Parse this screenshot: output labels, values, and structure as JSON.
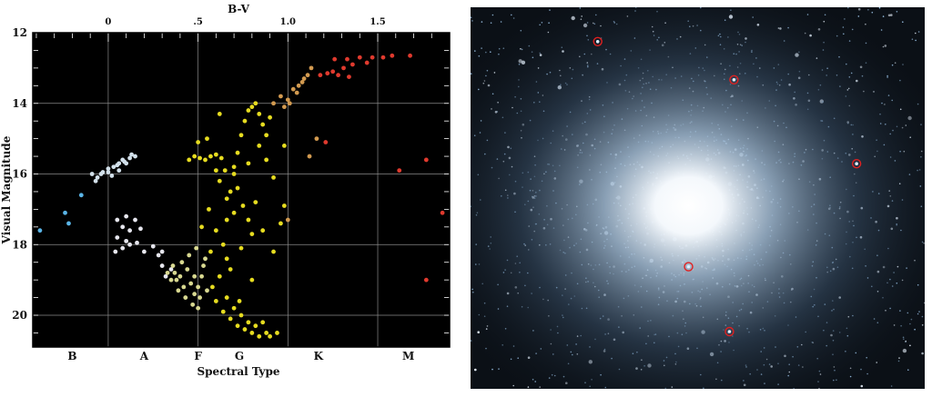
{
  "chart_data": {
    "type": "scatter",
    "title": "",
    "xlabel": "Spectral Type",
    "ylabel": "Visual Magnitude",
    "top_xlabel": "B-V",
    "xlim": [
      -0.42,
      1.9
    ],
    "ylim": [
      20.9,
      12.0
    ],
    "top_ticks": [
      {
        "value": 0.0,
        "label": "0"
      },
      {
        "value": 0.5,
        "label": ".5"
      },
      {
        "value": 1.0,
        "label": "1.0"
      },
      {
        "value": 1.5,
        "label": "1.5"
      }
    ],
    "y_ticks": [
      {
        "value": 12,
        "label": "12"
      },
      {
        "value": 14,
        "label": "14"
      },
      {
        "value": 16,
        "label": "16"
      },
      {
        "value": 18,
        "label": "18"
      },
      {
        "value": 20,
        "label": "20"
      }
    ],
    "spectral_types": [
      {
        "value": -0.2,
        "label": "B"
      },
      {
        "value": 0.2,
        "label": "A"
      },
      {
        "value": 0.5,
        "label": "F"
      },
      {
        "value": 0.73,
        "label": "G"
      },
      {
        "value": 1.17,
        "label": "K"
      },
      {
        "value": 1.67,
        "label": "M"
      }
    ],
    "background": "#000000",
    "grid": true,
    "series": [
      {
        "color": "#5ab4e6",
        "points": [
          [
            -0.38,
            17.6
          ],
          [
            -0.24,
            17.1
          ],
          [
            -0.15,
            16.6
          ],
          [
            -0.22,
            17.4
          ]
        ]
      },
      {
        "color": "#d2e0ea",
        "points": [
          [
            -0.09,
            16.0
          ],
          [
            -0.06,
            16.1
          ],
          [
            -0.03,
            15.95
          ],
          [
            0.0,
            15.85
          ],
          [
            0.03,
            15.8
          ],
          [
            0.06,
            15.7
          ],
          [
            0.09,
            15.65
          ],
          [
            0.12,
            15.55
          ],
          [
            0.15,
            15.5
          ],
          [
            0.02,
            16.05
          ],
          [
            0.06,
            15.9
          ],
          [
            -0.07,
            16.2
          ],
          [
            0.1,
            15.7
          ],
          [
            0.13,
            15.45
          ],
          [
            -0.04,
            16.0
          ],
          [
            0.05,
            15.75
          ],
          [
            0.0,
            15.95
          ],
          [
            0.08,
            15.6
          ]
        ]
      },
      {
        "color": "#e6e6ee",
        "points": [
          [
            0.05,
            17.3
          ],
          [
            0.1,
            17.2
          ],
          [
            0.15,
            17.3
          ],
          [
            0.08,
            17.5
          ],
          [
            0.12,
            17.6
          ],
          [
            0.18,
            17.55
          ],
          [
            0.05,
            17.8
          ],
          [
            0.1,
            17.9
          ],
          [
            0.16,
            17.95
          ],
          [
            0.04,
            18.2
          ],
          [
            0.08,
            18.1
          ],
          [
            0.2,
            18.2
          ],
          [
            0.25,
            18.05
          ],
          [
            0.28,
            18.3
          ],
          [
            0.3,
            18.6
          ],
          [
            0.32,
            18.9
          ],
          [
            0.35,
            18.7
          ],
          [
            0.3,
            18.2
          ],
          [
            0.12,
            18.0
          ]
        ]
      },
      {
        "color": "#d8d890",
        "points": [
          [
            0.33,
            18.8
          ],
          [
            0.36,
            18.6
          ],
          [
            0.38,
            19.0
          ],
          [
            0.4,
            18.9
          ],
          [
            0.42,
            19.2
          ],
          [
            0.44,
            18.7
          ],
          [
            0.46,
            19.1
          ],
          [
            0.48,
            19.4
          ],
          [
            0.5,
            19.2
          ],
          [
            0.52,
            18.9
          ],
          [
            0.35,
            19.0
          ],
          [
            0.41,
            18.5
          ],
          [
            0.45,
            18.3
          ],
          [
            0.49,
            18.1
          ],
          [
            0.53,
            18.6
          ],
          [
            0.55,
            19.3
          ],
          [
            0.47,
            19.7
          ],
          [
            0.43,
            19.5
          ],
          [
            0.39,
            19.3
          ],
          [
            0.5,
            19.8
          ],
          [
            0.54,
            18.4
          ],
          [
            0.37,
            18.8
          ],
          [
            0.48,
            18.9
          ],
          [
            0.51,
            19.5
          ]
        ]
      },
      {
        "color": "#e6dc20",
        "points": [
          [
            0.45,
            15.6
          ],
          [
            0.48,
            15.5
          ],
          [
            0.51,
            15.55
          ],
          [
            0.54,
            15.6
          ],
          [
            0.57,
            15.5
          ],
          [
            0.6,
            15.45
          ],
          [
            0.63,
            15.55
          ],
          [
            0.65,
            15.9
          ],
          [
            0.55,
            15.0
          ],
          [
            0.5,
            15.1
          ],
          [
            0.56,
            17.0
          ],
          [
            0.6,
            17.6
          ],
          [
            0.64,
            18.0
          ],
          [
            0.66,
            17.3
          ],
          [
            0.68,
            16.5
          ],
          [
            0.7,
            16.0
          ],
          [
            0.72,
            15.4
          ],
          [
            0.74,
            14.9
          ],
          [
            0.76,
            14.5
          ],
          [
            0.78,
            14.2
          ],
          [
            0.8,
            14.1
          ],
          [
            0.82,
            14.0
          ],
          [
            0.84,
            14.3
          ],
          [
            0.86,
            14.6
          ],
          [
            0.88,
            14.9
          ],
          [
            0.7,
            15.8
          ],
          [
            0.72,
            16.4
          ],
          [
            0.75,
            16.9
          ],
          [
            0.78,
            17.3
          ],
          [
            0.8,
            17.7
          ],
          [
            0.66,
            18.4
          ],
          [
            0.62,
            18.9
          ],
          [
            0.58,
            19.2
          ],
          [
            0.6,
            19.6
          ],
          [
            0.64,
            19.9
          ],
          [
            0.68,
            20.1
          ],
          [
            0.72,
            20.3
          ],
          [
            0.76,
            20.4
          ],
          [
            0.8,
            20.5
          ],
          [
            0.84,
            20.6
          ],
          [
            0.88,
            20.5
          ],
          [
            0.7,
            19.8
          ],
          [
            0.74,
            20.0
          ],
          [
            0.78,
            20.2
          ],
          [
            0.82,
            20.3
          ],
          [
            0.86,
            20.2
          ],
          [
            0.66,
            19.5
          ],
          [
            0.73,
            19.6
          ],
          [
            0.9,
            20.6
          ],
          [
            0.94,
            20.5
          ],
          [
            0.96,
            17.4
          ],
          [
            0.98,
            16.9
          ],
          [
            0.92,
            18.2
          ],
          [
            0.62,
            14.3
          ],
          [
            0.98,
            15.2
          ],
          [
            0.92,
            16.1
          ],
          [
            0.84,
            15.2
          ],
          [
            0.66,
            16.7
          ],
          [
            0.9,
            14.4
          ],
          [
            0.6,
            15.9
          ],
          [
            0.52,
            17.5
          ],
          [
            0.57,
            18.2
          ],
          [
            0.62,
            16.2
          ],
          [
            0.78,
            15.7
          ],
          [
            0.82,
            16.8
          ],
          [
            0.86,
            17.6
          ],
          [
            0.88,
            15.6
          ],
          [
            0.7,
            17.1
          ],
          [
            0.74,
            18.1
          ],
          [
            0.8,
            19.0
          ],
          [
            0.68,
            18.7
          ]
        ]
      },
      {
        "color": "#d29a50",
        "points": [
          [
            0.92,
            14.0
          ],
          [
            0.96,
            13.8
          ],
          [
            1.0,
            13.9
          ],
          [
            1.03,
            13.6
          ],
          [
            1.06,
            13.5
          ],
          [
            1.09,
            13.3
          ],
          [
            1.11,
            13.2
          ],
          [
            1.13,
            13.0
          ],
          [
            1.05,
            13.7
          ],
          [
            0.98,
            14.1
          ],
          [
            1.01,
            14.0
          ],
          [
            1.08,
            13.4
          ],
          [
            1.0,
            17.3
          ],
          [
            1.12,
            15.5
          ],
          [
            1.16,
            15.0
          ]
        ]
      },
      {
        "color": "#e03a2e",
        "points": [
          [
            1.18,
            13.2
          ],
          [
            1.22,
            13.15
          ],
          [
            1.25,
            13.1
          ],
          [
            1.28,
            13.2
          ],
          [
            1.31,
            13.0
          ],
          [
            1.34,
            13.25
          ],
          [
            1.26,
            12.75
          ],
          [
            1.33,
            12.75
          ],
          [
            1.4,
            12.7
          ],
          [
            1.47,
            12.7
          ],
          [
            1.53,
            12.7
          ],
          [
            1.58,
            12.65
          ],
          [
            1.68,
            12.65
          ],
          [
            1.36,
            12.9
          ],
          [
            1.44,
            12.85
          ],
          [
            1.21,
            15.1
          ],
          [
            1.62,
            15.9
          ],
          [
            1.77,
            15.6
          ],
          [
            1.86,
            17.1
          ],
          [
            1.77,
            19.0
          ]
        ]
      }
    ]
  },
  "cluster_image": {
    "highlighted_stars": [
      [
        0.28,
        0.09
      ],
      [
        0.58,
        0.19
      ],
      [
        0.85,
        0.41
      ],
      [
        0.48,
        0.68
      ],
      [
        0.57,
        0.85
      ]
    ],
    "core_position": [
      0.48,
      0.52
    ],
    "marker_color": "#e02020"
  }
}
